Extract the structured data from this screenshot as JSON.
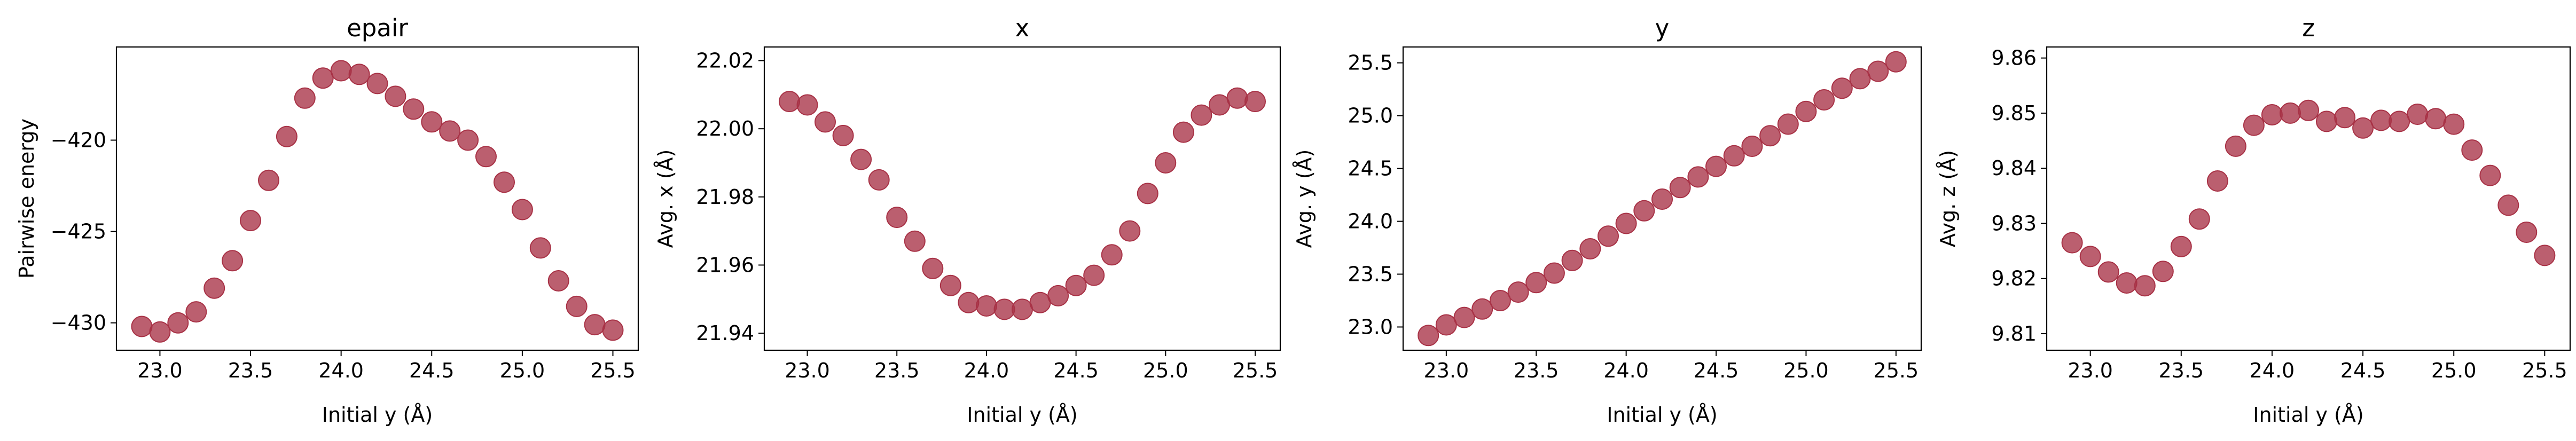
{
  "marker_color": "#a83246",
  "chart_data": [
    {
      "type": "scatter",
      "title": "epair",
      "xlabel": "Initial y (Å)",
      "ylabel": "Pairwise energy",
      "xlim": [
        22.76,
        25.64
      ],
      "ylim": [
        -431.5,
        -414.9
      ],
      "xticks": [
        23.0,
        23.5,
        24.0,
        24.5,
        25.0,
        25.5
      ],
      "xtick_labels": [
        "23.0",
        "23.5",
        "24.0",
        "24.5",
        "25.0",
        "25.5"
      ],
      "yticks": [
        -430,
        -425,
        -420
      ],
      "ytick_labels": [
        "−430",
        "−425",
        "−420"
      ],
      "x": [
        22.9,
        23.0,
        23.1,
        23.2,
        23.3,
        23.4,
        23.5,
        23.6,
        23.7,
        23.8,
        23.9,
        24.0,
        24.1,
        24.2,
        24.3,
        24.4,
        24.5,
        24.6,
        24.7,
        24.8,
        24.9,
        25.0,
        25.1,
        25.2,
        25.3,
        25.4,
        25.5
      ],
      "y": [
        -430.2,
        -430.5,
        -430.0,
        -429.4,
        -428.1,
        -426.6,
        -424.4,
        -422.2,
        -419.8,
        -417.7,
        -416.6,
        -416.2,
        -416.4,
        -416.9,
        -417.6,
        -418.3,
        -419.0,
        -419.5,
        -420.0,
        -420.9,
        -422.3,
        -423.8,
        -425.9,
        -427.7,
        -429.1,
        -430.1,
        -430.4
      ]
    },
    {
      "type": "scatter",
      "title": "x",
      "xlabel": "Initial y (Å)",
      "ylabel": "Avg. x (Å)",
      "xlim": [
        22.76,
        25.64
      ],
      "ylim": [
        21.935,
        22.024
      ],
      "xticks": [
        23.0,
        23.5,
        24.0,
        24.5,
        25.0,
        25.5
      ],
      "xtick_labels": [
        "23.0",
        "23.5",
        "24.0",
        "24.5",
        "25.0",
        "25.5"
      ],
      "yticks": [
        21.94,
        21.96,
        21.98,
        22.0,
        22.02
      ],
      "ytick_labels": [
        "21.94",
        "21.96",
        "21.98",
        "22.00",
        "22.02"
      ],
      "x": [
        22.9,
        23.0,
        23.1,
        23.2,
        23.3,
        23.4,
        23.5,
        23.6,
        23.7,
        23.8,
        23.9,
        24.0,
        24.1,
        24.2,
        24.3,
        24.4,
        24.5,
        24.6,
        24.7,
        24.8,
        24.9,
        25.0,
        25.1,
        25.2,
        25.3,
        25.4,
        25.5
      ],
      "y": [
        22.008,
        22.007,
        22.002,
        21.998,
        21.991,
        21.985,
        21.974,
        21.967,
        21.959,
        21.954,
        21.949,
        21.948,
        21.947,
        21.947,
        21.949,
        21.951,
        21.954,
        21.957,
        21.963,
        21.97,
        21.981,
        21.99,
        21.999,
        22.004,
        22.007,
        22.009,
        22.008
      ]
    },
    {
      "type": "scatter",
      "title": "y",
      "xlabel": "Initial y (Å)",
      "ylabel": "Avg. y (Å)",
      "xlim": [
        22.76,
        25.64
      ],
      "ylim": [
        22.78,
        25.65
      ],
      "xticks": [
        23.0,
        23.5,
        24.0,
        24.5,
        25.0,
        25.5
      ],
      "xtick_labels": [
        "23.0",
        "23.5",
        "24.0",
        "24.5",
        "25.0",
        "25.5"
      ],
      "yticks": [
        23.0,
        23.5,
        24.0,
        24.5,
        25.0,
        25.5
      ],
      "ytick_labels": [
        "23.0",
        "23.5",
        "24.0",
        "24.5",
        "25.0",
        "25.5"
      ],
      "x": [
        22.9,
        23.0,
        23.1,
        23.2,
        23.3,
        23.4,
        23.5,
        23.6,
        23.7,
        23.8,
        23.9,
        24.0,
        24.1,
        24.2,
        24.3,
        24.4,
        24.5,
        24.6,
        24.7,
        24.8,
        24.9,
        25.0,
        25.1,
        25.2,
        25.3,
        25.4,
        25.5
      ],
      "y": [
        22.92,
        23.02,
        23.09,
        23.17,
        23.25,
        23.33,
        23.42,
        23.51,
        23.63,
        23.74,
        23.86,
        23.98,
        24.1,
        24.21,
        24.32,
        24.42,
        24.52,
        24.62,
        24.71,
        24.81,
        24.92,
        25.04,
        25.15,
        25.26,
        25.35,
        25.42,
        25.51
      ]
    },
    {
      "type": "scatter",
      "title": "z",
      "xlabel": "Initial y (Å)",
      "ylabel": "Avg. z (Å)",
      "xlim": [
        22.76,
        25.64
      ],
      "ylim": [
        9.807,
        9.862
      ],
      "xticks": [
        23.0,
        23.5,
        24.0,
        24.5,
        25.0,
        25.5
      ],
      "xtick_labels": [
        "23.0",
        "23.5",
        "24.0",
        "24.5",
        "25.0",
        "25.5"
      ],
      "yticks": [
        9.81,
        9.82,
        9.83,
        9.84,
        9.85,
        9.86
      ],
      "ytick_labels": [
        "9.81",
        "9.82",
        "9.83",
        "9.84",
        "9.85",
        "9.86"
      ],
      "x": [
        22.9,
        23.0,
        23.1,
        23.2,
        23.3,
        23.4,
        23.5,
        23.6,
        23.7,
        23.8,
        23.9,
        24.0,
        24.1,
        24.2,
        24.3,
        24.4,
        24.5,
        24.6,
        24.7,
        24.8,
        24.9,
        25.0,
        25.1,
        25.2,
        25.3,
        25.4,
        25.5
      ],
      "y": [
        9.8265,
        9.824,
        9.8212,
        9.8192,
        9.8187,
        9.8213,
        9.8258,
        9.8308,
        9.8377,
        9.844,
        9.8478,
        9.8497,
        9.85,
        9.8505,
        9.8485,
        9.8492,
        9.8473,
        9.8487,
        9.8485,
        9.8498,
        9.849,
        9.848,
        9.8433,
        9.8387,
        9.8333,
        9.8284,
        9.8242
      ]
    }
  ]
}
